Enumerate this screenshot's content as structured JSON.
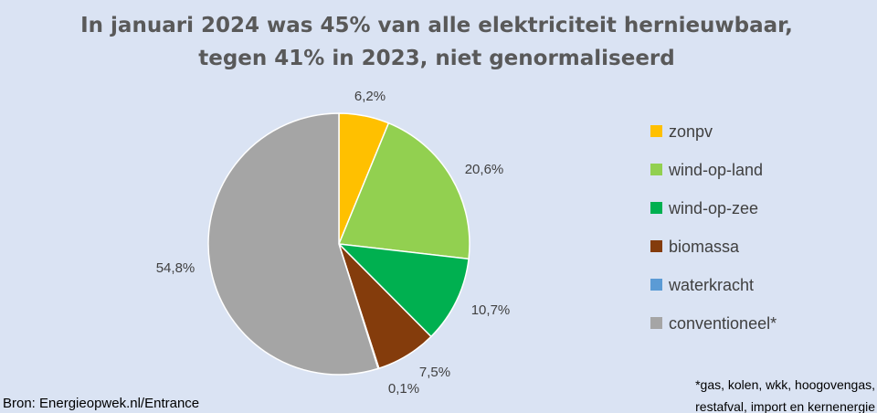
{
  "chart_data": {
    "type": "pie",
    "title": "In januari 2024 was 45% van alle elektriciteit hernieuwbaar,",
    "subtitle": "tegen 41% in 2023, niet genormaliseerd",
    "legend_position": "right",
    "slices": [
      {
        "name": "zonpv",
        "value": 6.2,
        "label": "6,2%",
        "color": "#ffc000"
      },
      {
        "name": "wind-op-land",
        "value": 20.6,
        "label": "20,6%",
        "color": "#92d050"
      },
      {
        "name": "wind-op-zee",
        "value": 10.7,
        "label": "10,7%",
        "color": "#00b050"
      },
      {
        "name": "biomassa",
        "value": 7.5,
        "label": "7,5%",
        "color": "#843c0c"
      },
      {
        "name": "waterkracht",
        "value": 0.1,
        "label": "0,1%",
        "color": "#5b9bd5"
      },
      {
        "name": "conventioneel*",
        "value": 54.8,
        "label": "54,8%",
        "color": "#a5a5a5"
      }
    ]
  },
  "footer": {
    "source": "Bron: Energieopwek.nl/Entrance",
    "footnote_line1": "*gas, kolen, wkk, hoogovengas,",
    "footnote_line2": "restafval, import en kernenergie"
  }
}
